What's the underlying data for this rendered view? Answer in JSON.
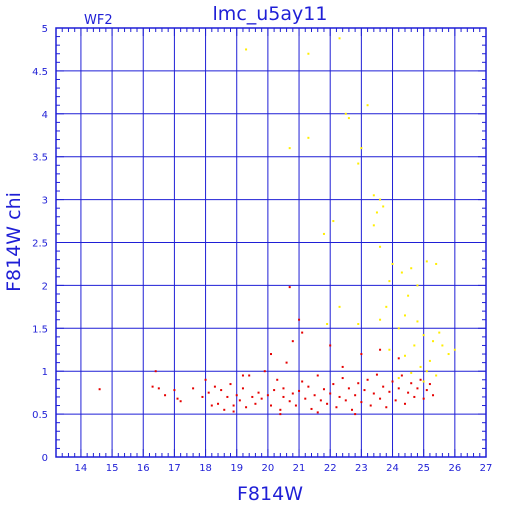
{
  "chart_data": {
    "type": "scatter",
    "title": "lmc_u5ay11",
    "panel_label": "WF2",
    "xlabel": "F814W",
    "ylabel": "F814W chi",
    "xlim": [
      13.2,
      27
    ],
    "ylim": [
      0,
      5
    ],
    "x_ticks": [
      14,
      15,
      16,
      17,
      18,
      19,
      20,
      21,
      22,
      23,
      24,
      25,
      26,
      27
    ],
    "y_ticks": [
      0,
      0.5,
      1,
      1.5,
      2,
      2.5,
      3,
      3.5,
      4,
      4.5,
      5
    ],
    "x_tick_labels": [
      "14",
      "15",
      "16",
      "17",
      "18",
      "19",
      "20",
      "21",
      "22",
      "23",
      "24",
      "25",
      "26",
      "27"
    ],
    "y_tick_labels": [
      "0",
      "0.5",
      "1",
      "1.5",
      "2",
      "2.5",
      "3",
      "3.5",
      "4",
      "4.5",
      "5"
    ],
    "grid": true,
    "colors": {
      "axis": "#1f1fd6",
      "grid": "#1f1fd6",
      "red": "#e60000",
      "yellow": "#ffee00"
    },
    "series": [
      {
        "color": "red",
        "points": [
          [
            14.6,
            0.79
          ],
          [
            16.3,
            0.82
          ],
          [
            16.4,
            1.0
          ],
          [
            16.5,
            0.8
          ],
          [
            16.7,
            0.72
          ],
          [
            17.1,
            0.68
          ],
          [
            17.2,
            0.65
          ],
          [
            17.6,
            0.8
          ],
          [
            17.9,
            0.7
          ],
          [
            18.0,
            0.9
          ],
          [
            18.1,
            0.75
          ],
          [
            18.2,
            0.6
          ],
          [
            18.3,
            0.82
          ],
          [
            18.4,
            0.62
          ],
          [
            18.5,
            0.78
          ],
          [
            18.6,
            0.55
          ],
          [
            18.7,
            0.7
          ],
          [
            18.8,
            0.85
          ],
          [
            18.9,
            0.6
          ],
          [
            19.0,
            0.72
          ],
          [
            19.1,
            0.66
          ],
          [
            19.2,
            0.8
          ],
          [
            19.3,
            0.58
          ],
          [
            19.4,
            0.95
          ],
          [
            19.5,
            0.7
          ],
          [
            19.6,
            0.62
          ],
          [
            19.7,
            0.75
          ],
          [
            19.8,
            0.68
          ],
          [
            19.9,
            1.0
          ],
          [
            20.0,
            0.72
          ],
          [
            20.1,
            0.6
          ],
          [
            20.2,
            0.78
          ],
          [
            20.3,
            0.9
          ],
          [
            20.4,
            0.55
          ],
          [
            20.5,
            0.7
          ],
          [
            20.5,
            0.8
          ],
          [
            20.6,
            1.1
          ],
          [
            20.7,
            0.65
          ],
          [
            20.8,
            0.74
          ],
          [
            20.9,
            0.6
          ],
          [
            21.0,
            0.77
          ],
          [
            21.1,
            0.88
          ],
          [
            21.2,
            0.68
          ],
          [
            21.3,
            0.82
          ],
          [
            21.4,
            0.56
          ],
          [
            21.5,
            0.72
          ],
          [
            21.6,
            0.95
          ],
          [
            21.7,
            0.66
          ],
          [
            21.8,
            0.79
          ],
          [
            21.9,
            0.62
          ],
          [
            22.0,
            0.74
          ],
          [
            22.1,
            0.85
          ],
          [
            22.2,
            0.58
          ],
          [
            22.3,
            0.7
          ],
          [
            22.4,
            0.92
          ],
          [
            22.5,
            0.66
          ],
          [
            22.6,
            0.8
          ],
          [
            22.7,
            0.55
          ],
          [
            22.8,
            0.72
          ],
          [
            22.9,
            0.86
          ],
          [
            23.0,
            0.64
          ],
          [
            23.1,
            0.78
          ],
          [
            23.2,
            0.9
          ],
          [
            23.3,
            0.6
          ],
          [
            23.4,
            0.74
          ],
          [
            23.5,
            0.96
          ],
          [
            23.6,
            0.68
          ],
          [
            23.7,
            0.82
          ],
          [
            23.8,
            0.58
          ],
          [
            23.9,
            0.76
          ],
          [
            24.0,
            0.88
          ],
          [
            24.1,
            0.66
          ],
          [
            24.2,
            0.8
          ],
          [
            24.3,
            0.95
          ],
          [
            24.4,
            0.62
          ],
          [
            24.5,
            0.75
          ],
          [
            24.6,
            0.86
          ],
          [
            24.7,
            0.7
          ],
          [
            24.8,
            0.8
          ],
          [
            24.9,
            0.9
          ],
          [
            25.0,
            0.68
          ],
          [
            25.1,
            0.78
          ],
          [
            25.2,
            0.85
          ],
          [
            25.3,
            0.72
          ],
          [
            20.7,
            1.98
          ],
          [
            21.0,
            1.6
          ],
          [
            20.8,
            1.35
          ],
          [
            20.1,
            1.2
          ],
          [
            21.1,
            1.45
          ],
          [
            22.0,
            1.3
          ],
          [
            23.0,
            1.2
          ],
          [
            22.4,
            1.05
          ],
          [
            23.6,
            1.25
          ],
          [
            24.2,
            1.15
          ],
          [
            19.2,
            0.95
          ],
          [
            18.9,
            0.53
          ],
          [
            17.0,
            0.78
          ],
          [
            20.4,
            0.5
          ],
          [
            21.6,
            0.52
          ],
          [
            22.8,
            0.5
          ]
        ]
      },
      {
        "color": "yellow",
        "points": [
          [
            19.3,
            4.75
          ],
          [
            21.3,
            4.7
          ],
          [
            22.3,
            4.88
          ],
          [
            22.5,
            4.0
          ],
          [
            22.6,
            3.95
          ],
          [
            23.2,
            4.1
          ],
          [
            21.3,
            3.72
          ],
          [
            20.7,
            3.6
          ],
          [
            23.0,
            3.6
          ],
          [
            22.9,
            3.42
          ],
          [
            23.4,
            3.05
          ],
          [
            23.6,
            3.0
          ],
          [
            23.7,
            2.92
          ],
          [
            23.5,
            2.85
          ],
          [
            23.4,
            2.7
          ],
          [
            21.8,
            2.6
          ],
          [
            22.1,
            2.75
          ],
          [
            23.6,
            2.45
          ],
          [
            24.0,
            2.25
          ],
          [
            24.3,
            2.15
          ],
          [
            24.6,
            2.2
          ],
          [
            25.1,
            2.28
          ],
          [
            25.4,
            2.25
          ],
          [
            24.8,
            2.0
          ],
          [
            24.5,
            1.88
          ],
          [
            23.8,
            1.75
          ],
          [
            23.6,
            1.6
          ],
          [
            22.9,
            1.55
          ],
          [
            24.2,
            1.5
          ],
          [
            25.0,
            1.42
          ],
          [
            25.3,
            1.35
          ],
          [
            24.7,
            1.3
          ],
          [
            23.9,
            1.25
          ],
          [
            24.4,
            1.18
          ],
          [
            25.2,
            1.12
          ],
          [
            24.9,
            1.05
          ],
          [
            25.1,
            1.0
          ],
          [
            24.6,
            0.98
          ],
          [
            25.4,
            0.95
          ],
          [
            24.2,
            0.92
          ],
          [
            25.6,
            1.3
          ],
          [
            25.8,
            1.2
          ],
          [
            26.0,
            1.25
          ],
          [
            25.5,
            1.45
          ],
          [
            24.4,
            1.65
          ],
          [
            23.9,
            2.05
          ],
          [
            22.3,
            1.75
          ],
          [
            21.9,
            1.55
          ],
          [
            24.8,
            1.58
          ],
          [
            25.0,
            0.88
          ]
        ]
      }
    ]
  }
}
